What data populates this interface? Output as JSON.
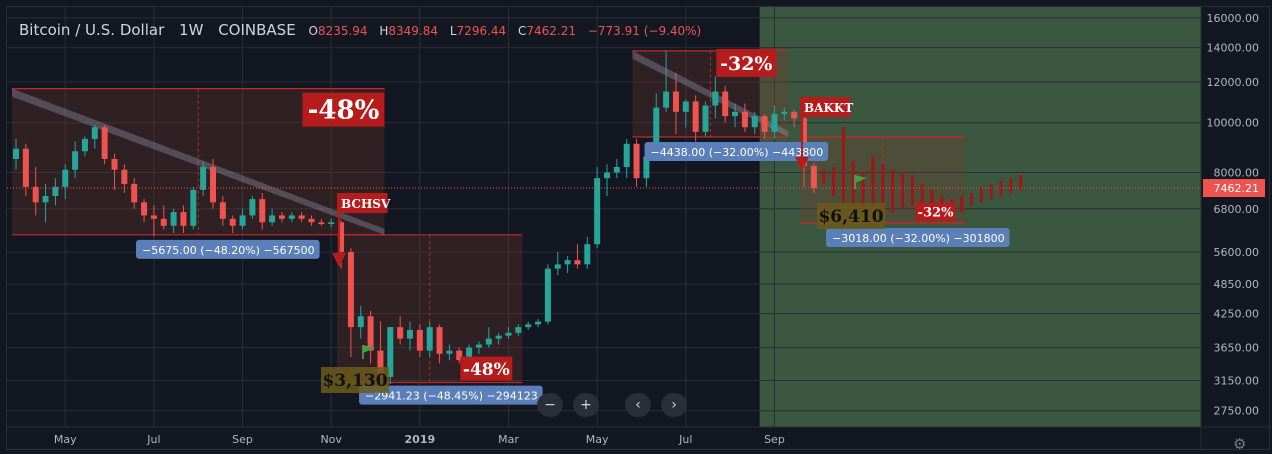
{
  "header": {
    "symbol": "Bitcoin / U.S. Dollar",
    "interval": "1W",
    "exchange": "COINBASE",
    "open_label": "O",
    "open": "8235.94",
    "high_label": "H",
    "high": "8349.84",
    "low_label": "L",
    "low": "7296.44",
    "close_label": "C",
    "close": "7462.21",
    "change": "−773.91 (−9.40%)"
  },
  "controls": {
    "zoom_out": "−",
    "zoom_in": "+",
    "scroll_left": "‹",
    "scroll_right": "›",
    "settings_icon": "gear-icon"
  },
  "chart_data": {
    "type": "candlestick",
    "title": "",
    "xlabel": "",
    "ylabel": "",
    "y_scale": "log",
    "ylim": [
      2650,
      16500
    ],
    "y_ticks": [
      "16000.00",
      "14000.00",
      "12000.00",
      "10000.00",
      "8000.00",
      "6800.00",
      "5600.00",
      "4850.00",
      "4250.00",
      "3650.00",
      "3150.00",
      "2750.00"
    ],
    "x_ticks": [
      "May",
      "Jul",
      "Sep",
      "Nov",
      "2019",
      "Mar",
      "May",
      "Jul",
      "Sep"
    ],
    "x_tick_index": [
      5,
      14,
      23,
      32,
      41,
      50,
      59,
      68,
      77
    ],
    "last_price": "7462.21",
    "colors": {
      "up": "#26a69a",
      "down": "#ef5350",
      "projection": "#a31414",
      "bg": "#131722",
      "grid": "#2a2e39",
      "forecast_zone": "#4a6d4a"
    },
    "candles": [
      [
        8500,
        9300,
        8100,
        8900
      ],
      [
        8900,
        9100,
        7200,
        7500
      ],
      [
        7500,
        8200,
        6600,
        7000
      ],
      [
        7000,
        7600,
        6400,
        7200
      ],
      [
        7200,
        7800,
        6900,
        7500
      ],
      [
        7500,
        8300,
        7100,
        8100
      ],
      [
        8100,
        9200,
        7800,
        8800
      ],
      [
        8800,
        9400,
        8600,
        9300
      ],
      [
        9300,
        9900,
        8900,
        9800
      ],
      [
        9800,
        9900,
        8300,
        8500
      ],
      [
        8500,
        8700,
        7400,
        8100
      ],
      [
        8100,
        8300,
        7300,
        7600
      ],
      [
        7600,
        7800,
        6800,
        7000
      ],
      [
        7000,
        7100,
        6400,
        6600
      ],
      [
        6600,
        6900,
        6000,
        6500
      ],
      [
        6500,
        6900,
        6200,
        6300
      ],
      [
        6300,
        6800,
        6100,
        6700
      ],
      [
        6700,
        6900,
        6100,
        6300
      ],
      [
        6300,
        7500,
        6200,
        7400
      ],
      [
        7400,
        8400,
        7200,
        8200
      ],
      [
        8200,
        8500,
        6800,
        7000
      ],
      [
        7000,
        7200,
        6300,
        6500
      ],
      [
        6500,
        6600,
        6100,
        6300
      ],
      [
        6300,
        6800,
        6200,
        6600
      ],
      [
        6600,
        7200,
        6500,
        7100
      ],
      [
        7100,
        7300,
        6200,
        6400
      ],
      [
        6400,
        6800,
        6300,
        6600
      ],
      [
        6600,
        6700,
        6400,
        6500
      ],
      [
        6500,
        6700,
        6400,
        6600
      ],
      [
        6600,
        6700,
        6400,
        6500
      ],
      [
        6500,
        6600,
        6300,
        6400
      ],
      [
        6400,
        6500,
        6300,
        6350
      ],
      [
        6350,
        6500,
        6250,
        6400
      ],
      [
        6400,
        6450,
        5200,
        5600
      ],
      [
        5600,
        5700,
        3500,
        4000
      ],
      [
        4000,
        4400,
        3800,
        4200
      ],
      [
        4200,
        4300,
        3400,
        3600
      ],
      [
        3600,
        4100,
        3150,
        3200
      ],
      [
        3200,
        4000,
        3100,
        4000
      ],
      [
        4000,
        4200,
        3700,
        3800
      ],
      [
        3800,
        4100,
        3600,
        3950
      ],
      [
        3950,
        4050,
        3500,
        3600
      ],
      [
        3600,
        4100,
        3500,
        4000
      ],
      [
        4000,
        4050,
        3400,
        3550
      ],
      [
        3550,
        3700,
        3450,
        3600
      ],
      [
        3600,
        3650,
        3400,
        3450
      ],
      [
        3450,
        3700,
        3350,
        3650
      ],
      [
        3650,
        3750,
        3550,
        3700
      ],
      [
        3700,
        4000,
        3650,
        3800
      ],
      [
        3800,
        3900,
        3700,
        3850
      ],
      [
        3850,
        4000,
        3800,
        3900
      ],
      [
        3900,
        4050,
        3850,
        4000
      ],
      [
        4000,
        4100,
        3950,
        4050
      ],
      [
        4050,
        4150,
        4000,
        4100
      ],
      [
        4100,
        5300,
        4050,
        5200
      ],
      [
        5200,
        5600,
        5050,
        5300
      ],
      [
        5300,
        5500,
        5100,
        5400
      ],
      [
        5400,
        5800,
        5200,
        5300
      ],
      [
        5300,
        6000,
        5200,
        5800
      ],
      [
        5800,
        8200,
        5700,
        7800
      ],
      [
        7800,
        8300,
        7200,
        8000
      ],
      [
        8000,
        8500,
        7800,
        8200
      ],
      [
        8200,
        9300,
        7800,
        9100
      ],
      [
        9100,
        9300,
        7500,
        7800
      ],
      [
        7800,
        8700,
        7500,
        8600
      ],
      [
        8600,
        11400,
        8500,
        10700
      ],
      [
        10700,
        13800,
        10500,
        11500
      ],
      [
        11500,
        12500,
        9500,
        10500
      ],
      [
        10500,
        11100,
        9800,
        11000
      ],
      [
        11000,
        11300,
        9200,
        9600
      ],
      [
        9600,
        11000,
        9400,
        10800
      ],
      [
        10800,
        12300,
        10200,
        11500
      ],
      [
        11500,
        11800,
        10000,
        10300
      ],
      [
        10300,
        10900,
        9800,
        10500
      ],
      [
        10500,
        10900,
        9600,
        9800
      ],
      [
        9800,
        10500,
        9500,
        10300
      ],
      [
        10300,
        10400,
        9300,
        9600
      ],
      [
        9600,
        10800,
        9300,
        10400
      ],
      [
        10400,
        10700,
        10100,
        10500
      ],
      [
        10500,
        10600,
        9800,
        10200
      ],
      [
        10200,
        10300,
        7500,
        8235.94
      ],
      [
        8235.94,
        8349.84,
        7296.44,
        7462.21
      ]
    ],
    "projection": [
      [
        8100,
        7600
      ],
      [
        8200,
        7200
      ],
      [
        9800,
        7000
      ],
      [
        8400,
        6500
      ],
      [
        8000,
        6800
      ],
      [
        8600,
        6300
      ],
      [
        8300,
        6600
      ],
      [
        8100,
        6700
      ],
      [
        8000,
        6800
      ],
      [
        7900,
        6900
      ],
      [
        7600,
        6700
      ],
      [
        7400,
        6600
      ],
      [
        7200,
        6500
      ],
      [
        7100,
        6600
      ],
      [
        7200,
        6700
      ],
      [
        7300,
        6900
      ],
      [
        7500,
        7000
      ],
      [
        7600,
        7100
      ],
      [
        7700,
        7200
      ],
      [
        7800,
        7300
      ],
      [
        7900,
        7400
      ]
    ],
    "drawings": {
      "ranges": [
        {
          "from": 0,
          "to": 37,
          "high": 11650,
          "low": 6050,
          "label": "−5675.00 (−48.20%) −567500",
          "big_label": "-48%"
        },
        {
          "from": 33,
          "to": 51,
          "high": 6050,
          "low": 3120,
          "label": "−2941.23 (−48.45%) −294123",
          "big_label": "-48%"
        },
        {
          "from": 63,
          "to": 78,
          "high": 13800,
          "low": 9380,
          "label": "−4438.00 (−32.00%) −443800",
          "big_label": "-32%"
        },
        {
          "from": 80,
          "to": 96,
          "high": 9380,
          "low": 6380,
          "label": "−3018.00 (−32.00%) −301800",
          "big_label": "-32%"
        }
      ],
      "events": [
        {
          "label": "BCHSV",
          "index": 33
        },
        {
          "label": "BAKKT",
          "index": 80
        }
      ],
      "price_notes": [
        {
          "label": "$3,130"
        },
        {
          "label": "$6,410"
        }
      ]
    }
  }
}
